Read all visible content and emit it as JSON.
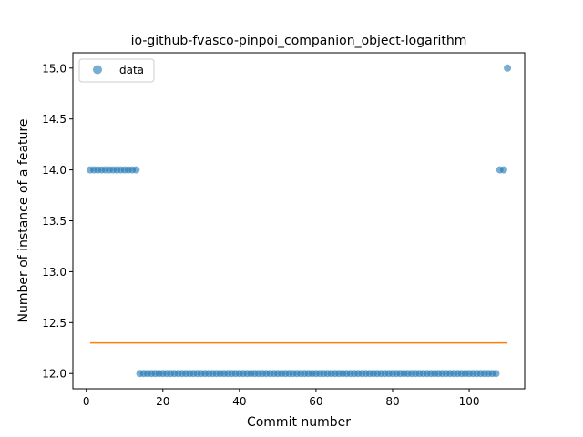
{
  "chart_data": {
    "type": "scatter",
    "title": "io-github-fvasco-pinpoi_companion_object-logarithm",
    "xlabel": "Commit number",
    "ylabel": "Number of instance of a feature",
    "xlim": [
      -3.5,
      114.5
    ],
    "ylim": [
      11.85,
      15.15
    ],
    "xticks": [
      0,
      20,
      40,
      60,
      80,
      100
    ],
    "yticks": [
      12.0,
      12.5,
      13.0,
      13.5,
      14.0,
      14.5,
      15.0
    ],
    "ytick_labels": [
      "12.0",
      "12.5",
      "13.0",
      "13.5",
      "14.0",
      "14.5",
      "15.0"
    ],
    "legend": {
      "position": "upper-left",
      "entries": [
        "data"
      ]
    },
    "grid": false,
    "colors": {
      "data": "#1f77b4",
      "trend": "#ff7f0e"
    },
    "series": [
      {
        "name": "data",
        "kind": "scatter",
        "points": [
          [
            1,
            14
          ],
          [
            2,
            14
          ],
          [
            3,
            14
          ],
          [
            4,
            14
          ],
          [
            5,
            14
          ],
          [
            6,
            14
          ],
          [
            7,
            14
          ],
          [
            8,
            14
          ],
          [
            9,
            14
          ],
          [
            10,
            14
          ],
          [
            11,
            14
          ],
          [
            12,
            14
          ],
          [
            13,
            14
          ],
          [
            14,
            12
          ],
          [
            15,
            12
          ],
          [
            16,
            12
          ],
          [
            17,
            12
          ],
          [
            18,
            12
          ],
          [
            19,
            12
          ],
          [
            20,
            12
          ],
          [
            21,
            12
          ],
          [
            22,
            12
          ],
          [
            23,
            12
          ],
          [
            24,
            12
          ],
          [
            25,
            12
          ],
          [
            26,
            12
          ],
          [
            27,
            12
          ],
          [
            28,
            12
          ],
          [
            29,
            12
          ],
          [
            30,
            12
          ],
          [
            31,
            12
          ],
          [
            32,
            12
          ],
          [
            33,
            12
          ],
          [
            34,
            12
          ],
          [
            35,
            12
          ],
          [
            36,
            12
          ],
          [
            37,
            12
          ],
          [
            38,
            12
          ],
          [
            39,
            12
          ],
          [
            40,
            12
          ],
          [
            41,
            12
          ],
          [
            42,
            12
          ],
          [
            43,
            12
          ],
          [
            44,
            12
          ],
          [
            45,
            12
          ],
          [
            46,
            12
          ],
          [
            47,
            12
          ],
          [
            48,
            12
          ],
          [
            49,
            12
          ],
          [
            50,
            12
          ],
          [
            51,
            12
          ],
          [
            52,
            12
          ],
          [
            53,
            12
          ],
          [
            54,
            12
          ],
          [
            55,
            12
          ],
          [
            56,
            12
          ],
          [
            57,
            12
          ],
          [
            58,
            12
          ],
          [
            59,
            12
          ],
          [
            60,
            12
          ],
          [
            61,
            12
          ],
          [
            62,
            12
          ],
          [
            63,
            12
          ],
          [
            64,
            12
          ],
          [
            65,
            12
          ],
          [
            66,
            12
          ],
          [
            67,
            12
          ],
          [
            68,
            12
          ],
          [
            69,
            12
          ],
          [
            70,
            12
          ],
          [
            71,
            12
          ],
          [
            72,
            12
          ],
          [
            73,
            12
          ],
          [
            74,
            12
          ],
          [
            75,
            12
          ],
          [
            76,
            12
          ],
          [
            77,
            12
          ],
          [
            78,
            12
          ],
          [
            79,
            12
          ],
          [
            80,
            12
          ],
          [
            81,
            12
          ],
          [
            82,
            12
          ],
          [
            83,
            12
          ],
          [
            84,
            12
          ],
          [
            85,
            12
          ],
          [
            86,
            12
          ],
          [
            87,
            12
          ],
          [
            88,
            12
          ],
          [
            89,
            12
          ],
          [
            90,
            12
          ],
          [
            91,
            12
          ],
          [
            92,
            12
          ],
          [
            93,
            12
          ],
          [
            94,
            12
          ],
          [
            95,
            12
          ],
          [
            96,
            12
          ],
          [
            97,
            12
          ],
          [
            98,
            12
          ],
          [
            99,
            12
          ],
          [
            100,
            12
          ],
          [
            101,
            12
          ],
          [
            102,
            12
          ],
          [
            103,
            12
          ],
          [
            104,
            12
          ],
          [
            105,
            12
          ],
          [
            106,
            12
          ],
          [
            107,
            12
          ],
          [
            108,
            14
          ],
          [
            109,
            14
          ],
          [
            110,
            15
          ]
        ]
      },
      {
        "kind": "line",
        "points": [
          [
            1,
            12.3
          ],
          [
            110,
            12.3
          ]
        ]
      }
    ]
  }
}
